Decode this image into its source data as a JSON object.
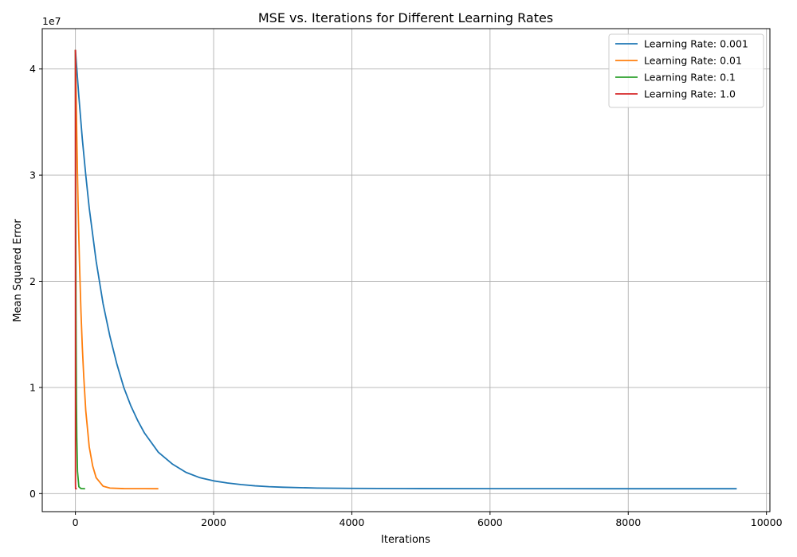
{
  "chart_data": {
    "type": "line",
    "title": "MSE vs. Iterations for Different Learning Rates",
    "xlabel": "Iterations",
    "ylabel": "Mean Squared Error",
    "y_offset_label": "1e7",
    "xlim": [
      -480,
      10050
    ],
    "ylim": [
      -1700000,
      43800000
    ],
    "x_ticks": [
      0,
      2000,
      4000,
      6000,
      8000,
      10000
    ],
    "x_tick_labels": [
      "0",
      "2000",
      "4000",
      "6000",
      "8000",
      "10000"
    ],
    "y_ticks": [
      0,
      10000000,
      20000000,
      30000000,
      40000000
    ],
    "y_tick_labels": [
      "0",
      "1",
      "2",
      "3",
      "4"
    ],
    "grid": true,
    "legend_position": "top-right",
    "series": [
      {
        "name": "Learning Rate: 0.001",
        "color": "#1f77b4",
        "x": [
          0,
          50,
          100,
          150,
          200,
          300,
          400,
          500,
          600,
          700,
          800,
          900,
          1000,
          1200,
          1400,
          1600,
          1800,
          2000,
          2200,
          2400,
          2600,
          2800,
          3000,
          3500,
          4000,
          5000,
          6000,
          7000,
          8000,
          9000,
          9570
        ],
        "y": [
          41800000,
          37400000,
          33400000,
          30000000,
          26900000,
          21900000,
          17900000,
          14800000,
          12200000,
          10000000,
          8300000,
          6900000,
          5700000,
          3900000,
          2800000,
          2000000,
          1500000,
          1200000,
          1000000,
          850000,
          730000,
          650000,
          600000,
          520000,
          490000,
          470000,
          465000,
          462000,
          460000,
          460000,
          460000
        ]
      },
      {
        "name": "Learning Rate: 0.01",
        "color": "#ff7f0e",
        "x": [
          0,
          10,
          20,
          30,
          40,
          50,
          60,
          80,
          100,
          120,
          150,
          200,
          250,
          300,
          400,
          500,
          700,
          1000,
          1200
        ],
        "y": [
          41800000,
          37700000,
          33700000,
          30100000,
          26900000,
          24000000,
          21500000,
          17200000,
          13800000,
          11100000,
          7800000,
          4400000,
          2600000,
          1500000,
          700000,
          520000,
          470000,
          462000,
          460000
        ]
      },
      {
        "name": "Learning Rate: 0.1",
        "color": "#2ca02c",
        "x": [
          0,
          2,
          4,
          6,
          8,
          10,
          15,
          20,
          30,
          50,
          80,
          100,
          140
        ],
        "y": [
          41800000,
          33800000,
          27300000,
          22100000,
          17900000,
          14500000,
          8700000,
          5300000,
          2100000,
          650000,
          480000,
          465000,
          460000
        ]
      },
      {
        "name": "Learning Rate: 1.0",
        "color": "#d62728",
        "x": [
          0,
          1,
          2,
          3,
          4,
          5,
          6,
          8,
          10,
          15,
          20
        ],
        "y": [
          41800000,
          1000000,
          480000,
          465000,
          462000,
          461000,
          460000,
          460000,
          460000,
          460000,
          460000
        ]
      }
    ]
  }
}
